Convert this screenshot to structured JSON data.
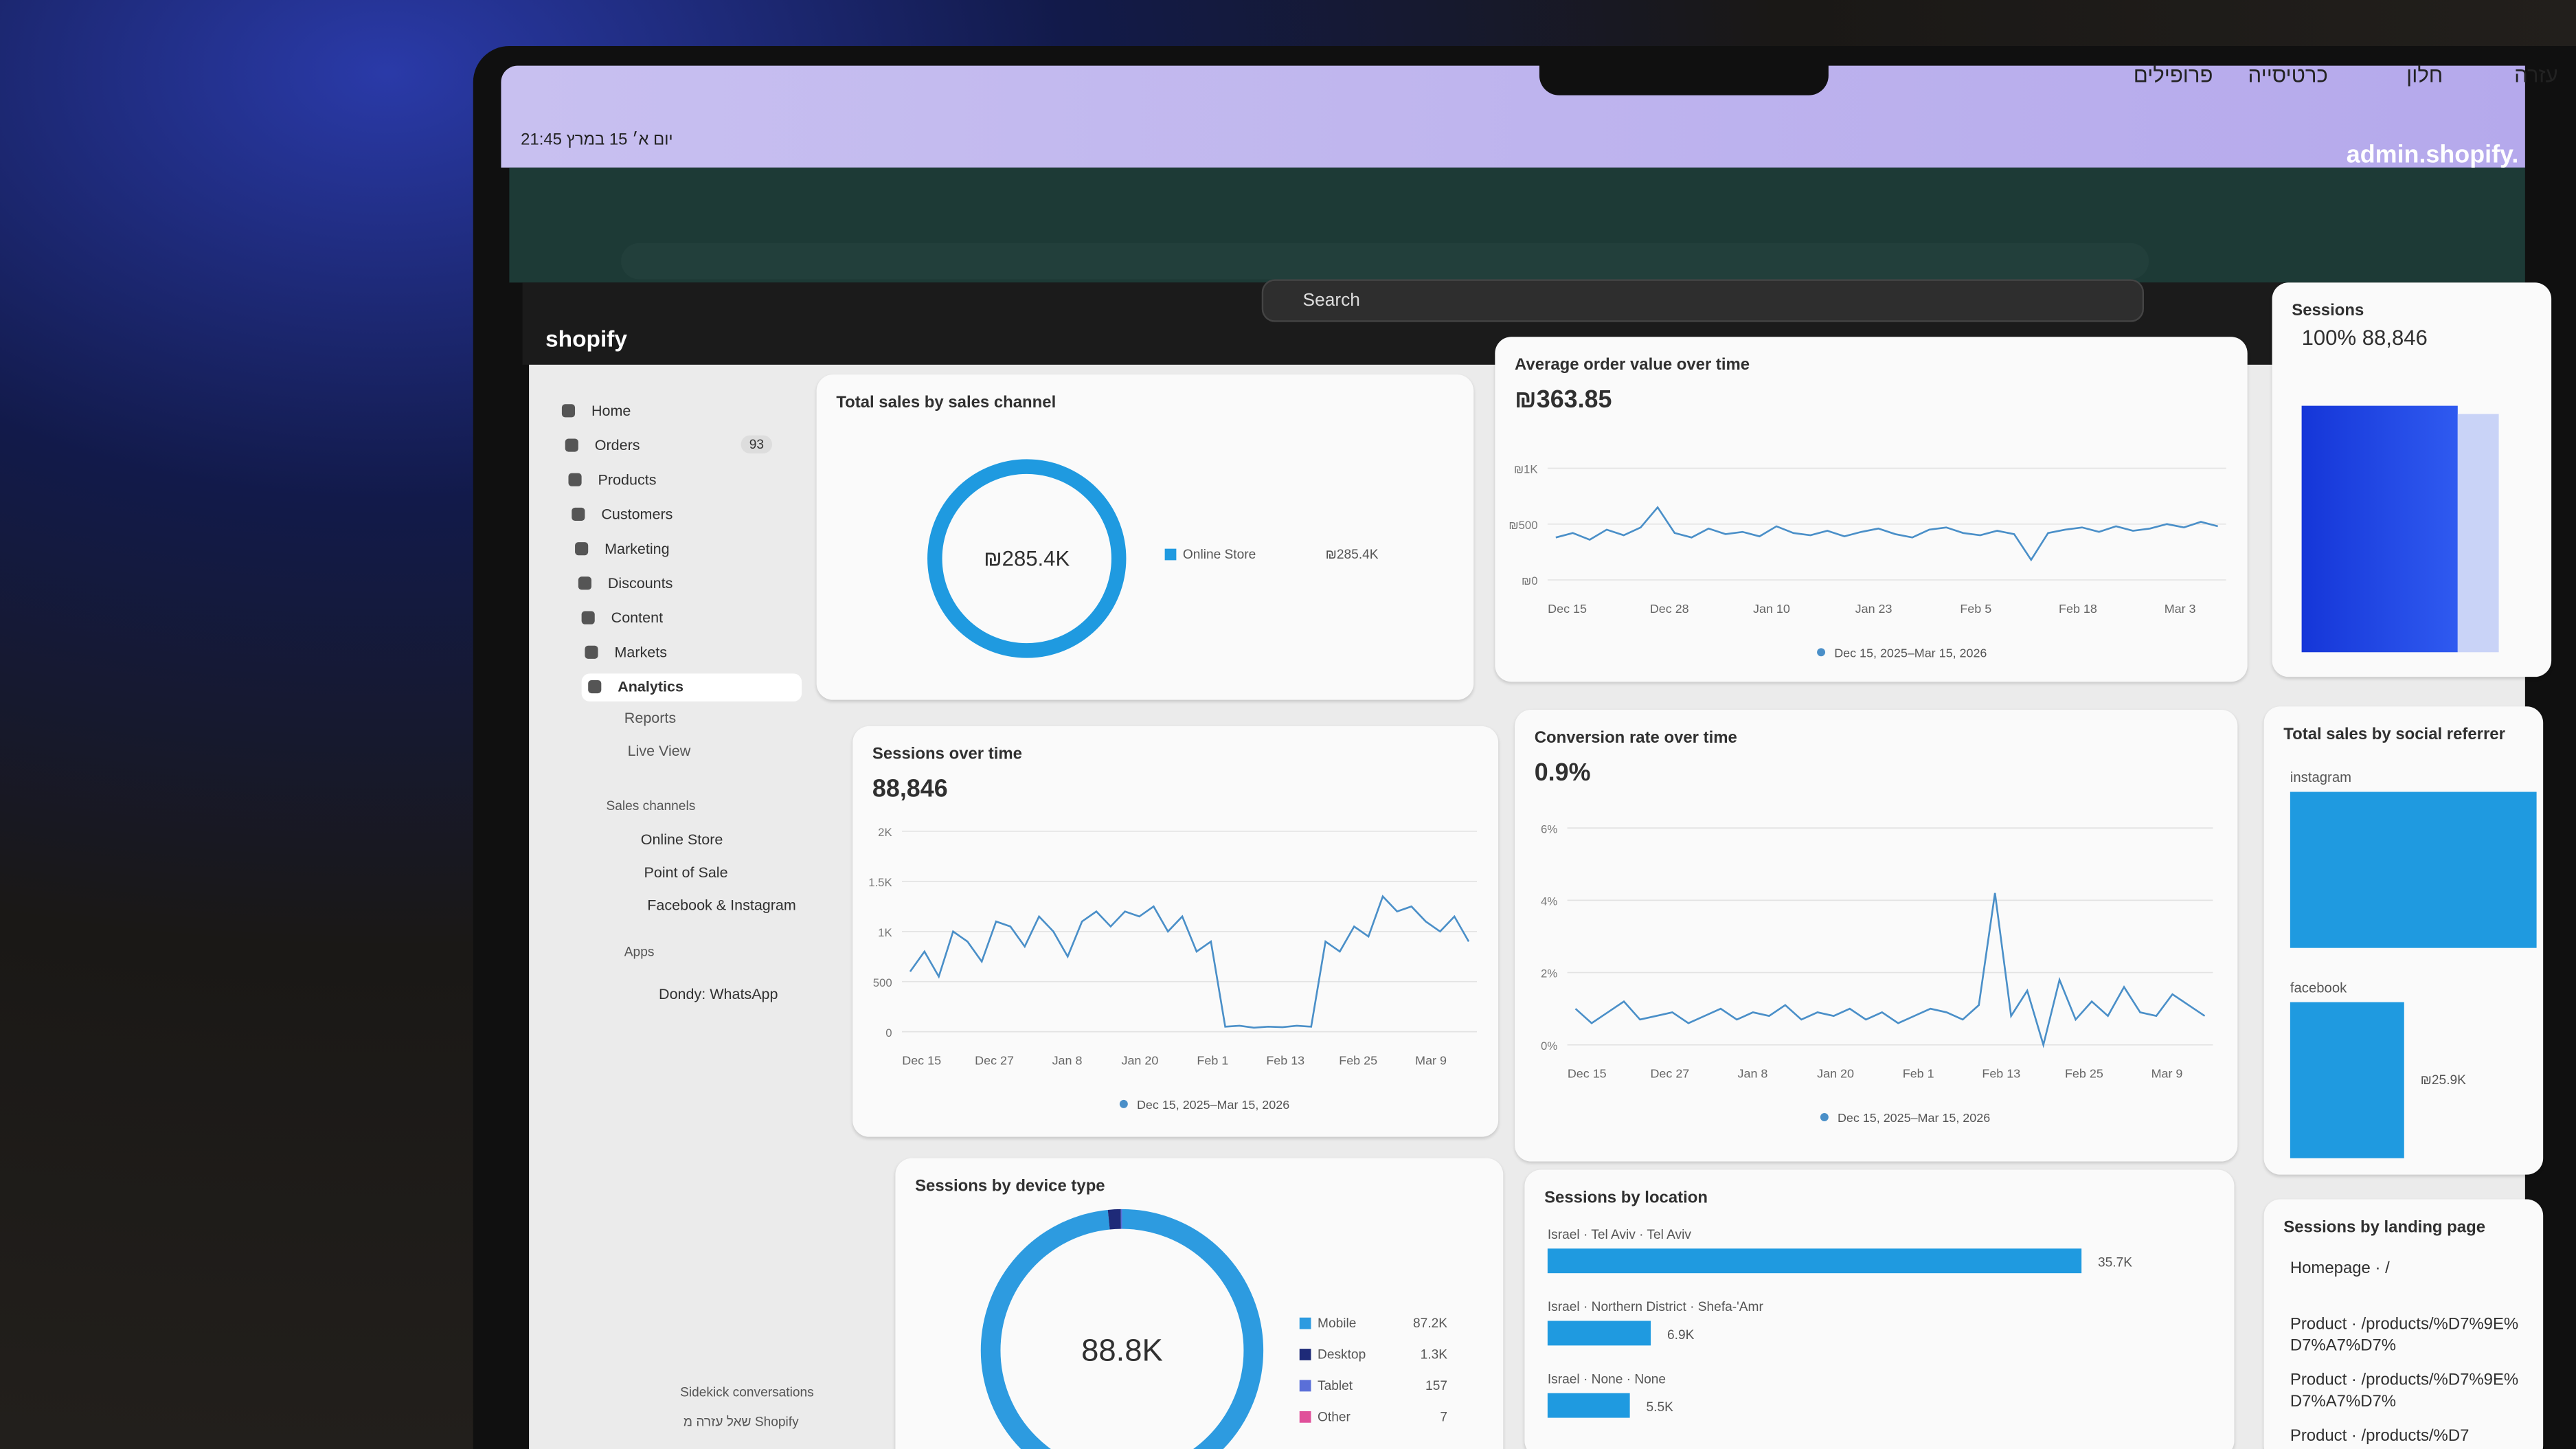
{
  "menubar": {
    "clock": "21:45 יום א׳ 15 במרץ",
    "items": [
      "עזרה",
      "חלון",
      "כרטיסייה",
      "פרופילים"
    ]
  },
  "browser": {
    "url": "admin.shopify.",
    "search": "Search"
  },
  "logo": "shopify",
  "nav": {
    "items": [
      {
        "label": "Home"
      },
      {
        "label": "Orders",
        "badge": "93"
      },
      {
        "label": "Products"
      },
      {
        "label": "Customers"
      },
      {
        "label": "Marketing"
      },
      {
        "label": "Discounts"
      },
      {
        "label": "Content"
      },
      {
        "label": "Markets"
      },
      {
        "label": "Analytics",
        "active": true
      }
    ],
    "subitems": [
      "Reports",
      "Live View"
    ],
    "sales_channels": {
      "title": "Sales channels",
      "items": [
        "Online Store",
        "Point of Sale",
        "Facebook & Instagram"
      ]
    },
    "apps": {
      "title": "Apps",
      "items": [
        "Dondy: WhatsApp"
      ]
    },
    "footer": [
      "Sidekick conversations",
      "שאל עזרה מ Shopify"
    ]
  },
  "sales_channel": {
    "title": "Total sales by sales channel",
    "center": "₪285.4K",
    "segments": [
      {
        "name": "Online Store",
        "value": 285400,
        "value_label": "₪285.4K",
        "color": "#1f9ae0"
      }
    ]
  },
  "avg_order": {
    "title": "Average order value over time",
    "total": "₪363.85",
    "ylim": [
      0,
      1000
    ],
    "yticks": [
      {
        "value": 0,
        "label": "₪0"
      },
      {
        "value": 500,
        "label": "₪500"
      },
      {
        "value": 1000,
        "label": "₪1K"
      }
    ],
    "xticks": [
      "Dec 15",
      "Dec 28",
      "Jan 10",
      "Jan 23",
      "Feb 5",
      "Feb 18",
      "Mar 3"
    ],
    "legend": "Dec 15, 2025–Mar 15, 2026",
    "color": "#4a8fc8",
    "values": [
      380,
      420,
      360,
      450,
      400,
      470,
      650,
      420,
      380,
      460,
      410,
      430,
      390,
      480,
      420,
      400,
      440,
      390,
      430,
      460,
      410,
      380,
      450,
      470,
      420,
      400,
      440,
      410,
      180,
      420,
      450,
      470,
      430,
      480,
      440,
      460,
      500,
      470,
      520,
      480
    ]
  },
  "sessions_card": {
    "title": "Sessions",
    "value": "100% 88,846"
  },
  "sessions": {
    "title": "Sessions over time",
    "total": "88,846",
    "ylim": [
      0,
      2000
    ],
    "yticks": [
      0,
      500,
      {
        "value": 1000,
        "label": "1K"
      },
      {
        "value": 1500,
        "label": "1.5K"
      },
      {
        "value": 2000,
        "label": "2K"
      }
    ],
    "xticks": [
      "Dec 15",
      "Dec 27",
      "Jan 8",
      "Jan 20",
      "Feb 1",
      "Feb 13",
      "Feb 25",
      "Mar 9"
    ],
    "legend": "Dec 15, 2025–Mar 15, 2026",
    "color": "#4a8fc8",
    "values": [
      600,
      800,
      550,
      1000,
      900,
      700,
      1100,
      1050,
      850,
      1150,
      1000,
      750,
      1100,
      1200,
      1050,
      1200,
      1150,
      1250,
      1000,
      1150,
      800,
      900,
      50,
      60,
      40,
      50,
      45,
      60,
      50,
      900,
      800,
      1050,
      950,
      1350,
      1200,
      1250,
      1100,
      1000,
      1150,
      900
    ]
  },
  "conversion": {
    "title": "Conversion rate over time",
    "total": "0.9%",
    "ylim": [
      0,
      6
    ],
    "yticks": [
      {
        "value": 0,
        "label": "0%"
      },
      {
        "value": 2,
        "label": "2%"
      },
      {
        "value": 4,
        "label": "4%"
      },
      {
        "value": 6,
        "label": "6%"
      }
    ],
    "xticks": [
      "Dec 15",
      "Dec 27",
      "Jan 8",
      "Jan 20",
      "Feb 1",
      "Feb 13",
      "Feb 25",
      "Mar 9"
    ],
    "legend": "Dec 15, 2025–Mar 15, 2026",
    "color": "#4a8fc8",
    "values": [
      1.0,
      0.6,
      0.9,
      1.2,
      0.7,
      0.8,
      0.9,
      0.6,
      0.8,
      1.0,
      0.7,
      0.9,
      0.8,
      1.1,
      0.7,
      0.9,
      0.8,
      1.0,
      0.7,
      0.9,
      0.6,
      0.8,
      1.0,
      0.9,
      0.7,
      1.1,
      4.2,
      0.8,
      1.5,
      0,
      1.8,
      0.7,
      1.2,
      0.8,
      1.6,
      0.9,
      0.8,
      1.4,
      1.1,
      0.8
    ]
  },
  "social": {
    "title": "Total sales by social referrer",
    "bars": [
      {
        "name": "instagram",
        "value": 56000
      },
      {
        "name": "facebook",
        "value": 25900,
        "value_label": "₪25.9K"
      }
    ],
    "color": "#1f9ae0"
  },
  "device": {
    "title": "Sessions by device type",
    "center": "88.8K",
    "segments": [
      {
        "name": "Mobile",
        "value": 87200,
        "value_label": "87.2K",
        "color": "#2d9be0"
      },
      {
        "name": "Desktop",
        "value": 1300,
        "value_label": "1.3K",
        "color": "#1e2a78"
      },
      {
        "name": "Tablet",
        "value": 157,
        "color": "#5a6fd8"
      },
      {
        "name": "Other",
        "value": 7,
        "color": "#e0509a"
      }
    ]
  },
  "location": {
    "title": "Sessions by location",
    "color": "#1f9ae0",
    "bars": [
      {
        "name": "Israel · Tel Aviv · Tel Aviv",
        "value": 35700,
        "value_label": "35.7K"
      },
      {
        "name": "Israel · Northern District · Shefa-'Amr",
        "value": 6900,
        "value_label": "6.9K"
      },
      {
        "name": "Israel · None · None",
        "value": 5500,
        "value_label": "5.5K"
      }
    ]
  },
  "landing": {
    "title": "Sessions by landing page",
    "rows": [
      "Homepage · /",
      "Product · /products/%D7%9E%D7%A7%D7%",
      "Product · /products/%D7%9E%D7%A7%D7%",
      "Product · /products/%D7"
    ]
  }
}
